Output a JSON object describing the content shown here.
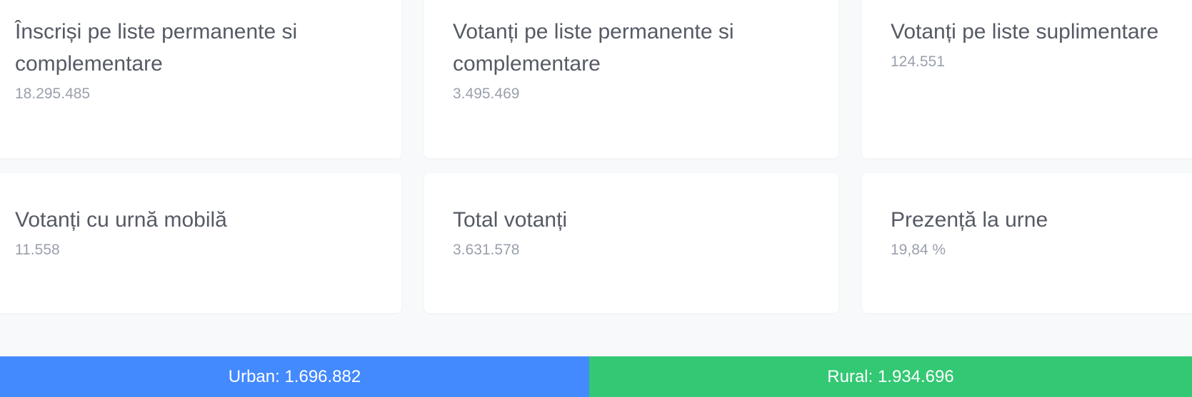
{
  "stats": [
    {
      "label": "Înscriși pe liste permanente si complementare",
      "value": "18.295.485"
    },
    {
      "label": "Votanți pe liste permanente si complementare",
      "value": "3.495.469"
    },
    {
      "label": "Votanți pe liste suplimentare",
      "value": "124.551"
    },
    {
      "label": "Votanți cu urnă mobilă",
      "value": "11.558"
    },
    {
      "label": "Total votanți",
      "value": "3.631.578"
    },
    {
      "label": "Prezență la urne",
      "value": "19,84 %"
    }
  ],
  "split": {
    "urban": {
      "label": "Urban: 1.696.882",
      "color": "#448aff"
    },
    "rural": {
      "label": "Rural: 1.934.696",
      "color": "#33c873"
    }
  }
}
